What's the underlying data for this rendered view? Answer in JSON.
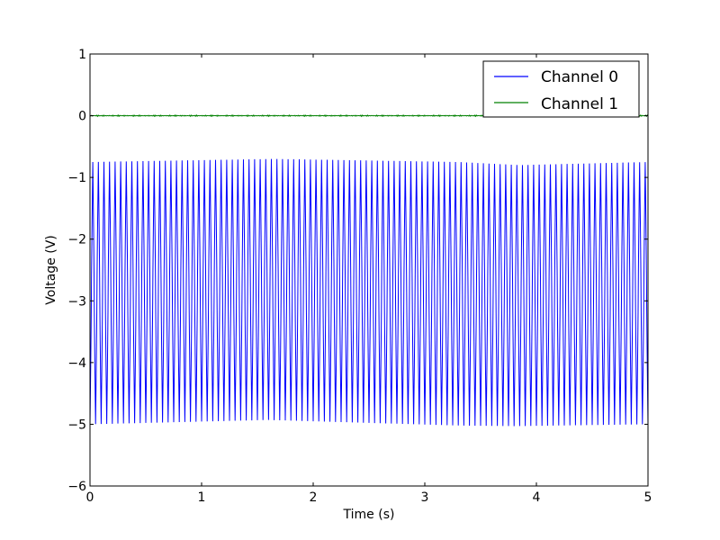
{
  "chart_data": {
    "type": "line",
    "title": "",
    "xlabel": "Time (s)",
    "ylabel": "Voltage (V)",
    "xlim": [
      0,
      5
    ],
    "ylim": [
      -6,
      1
    ],
    "xticks": [
      0,
      1,
      2,
      3,
      4,
      5
    ],
    "xtick_labels": [
      "0",
      "1",
      "2",
      "3",
      "4",
      "5"
    ],
    "yticks": [
      -6,
      -5,
      -4,
      -3,
      -2,
      -1,
      0,
      1
    ],
    "ytick_labels": [
      "−6",
      "−5",
      "−4",
      "−3",
      "−2",
      "−1",
      "0",
      "1"
    ],
    "grid": false,
    "legend_position": "top-right",
    "series": [
      {
        "name": "Channel 0",
        "color": "#0000ff",
        "waveform": {
          "kind": "triangle-like periodic oscillation",
          "cycles": 100,
          "duration_s": 5,
          "peaks": [
            [
              0,
              -0.75
            ],
            [
              1.65,
              -0.7
            ],
            [
              3.3,
              -0.75
            ],
            [
              3.85,
              -0.8
            ],
            [
              5,
              -0.75
            ]
          ],
          "troughs": [
            [
              0,
              -5.0
            ],
            [
              1.6,
              -4.93
            ],
            [
              3.3,
              -5.02
            ],
            [
              3.8,
              -5.03
            ],
            [
              5,
              -5.0
            ]
          ]
        }
      },
      {
        "name": "Channel 1",
        "color": "#008000",
        "waveform": {
          "kind": "near-constant noise",
          "level": 0.0,
          "noise_amplitude": 0.01
        }
      }
    ]
  }
}
